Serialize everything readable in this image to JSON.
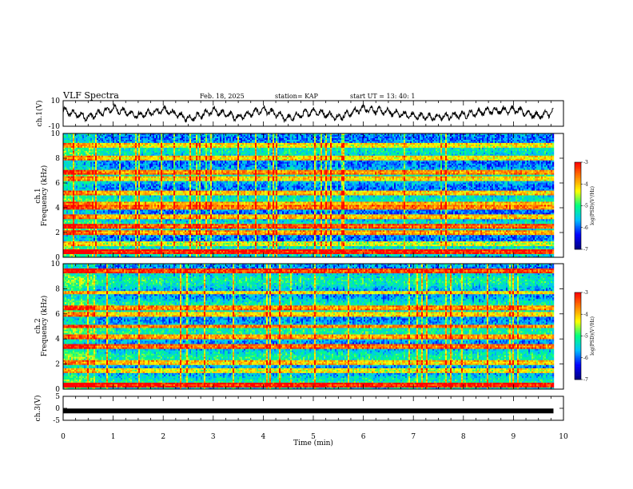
{
  "header": {
    "title": "VLF Spectra",
    "date": "Feb. 18, 2025",
    "station": "station= KAP",
    "start_ut": "start  UT =  13: 40: 1"
  },
  "chart_data": [
    {
      "type": "line",
      "panel": "ch1-waveform",
      "ylabel": "ch.1(V)",
      "ylim": [
        -10,
        10
      ],
      "yticks": [
        -10,
        10
      ],
      "xlim": [
        0,
        10
      ],
      "data_end_min": 9.8,
      "series": [
        {
          "description": "noisy oscillating voltage",
          "x": [
            0,
            0.5,
            1,
            1.5,
            2,
            2.5,
            3,
            3.5,
            4,
            4.5,
            5,
            5.5,
            6,
            6.5,
            7,
            7.5,
            8,
            8.5,
            9,
            9.5,
            9.8
          ],
          "values": [
            2,
            -3,
            4,
            -2,
            3,
            -4,
            2,
            -3,
            3,
            -4,
            2,
            -3,
            4,
            1,
            -2,
            -3,
            -1,
            2,
            3,
            -2,
            1
          ]
        }
      ]
    },
    {
      "type": "heatmap",
      "panel": "ch1-spectrogram",
      "ylabel_top": "ch.1",
      "ylabel": "Frequency (kHz)",
      "ylim": [
        0,
        10
      ],
      "yticks": [
        0,
        2,
        4,
        6,
        8,
        10
      ],
      "xlim": [
        0,
        10
      ],
      "data_end_min": 9.8,
      "colorbar": {
        "label": "log(PSD)(V²/Hz)",
        "range": [
          -7,
          -3
        ],
        "ticks": [
          -3,
          -4,
          -5,
          -6,
          -7
        ]
      },
      "regime_change_min": 0.6,
      "bands_khz": [
        {
          "f": 0.4,
          "level": -3.3
        },
        {
          "f": 1.1,
          "level": -4.6
        },
        {
          "f": 2.0,
          "level": -4.0
        },
        {
          "f": 2.5,
          "level": -3.6
        },
        {
          "f": 3.3,
          "level": -4.2
        },
        {
          "f": 4.0,
          "level": -3.8
        },
        {
          "f": 4.3,
          "level": -4.1
        },
        {
          "f": 5.2,
          "level": -4.2
        },
        {
          "f": 6.3,
          "level": -4.3
        },
        {
          "f": 6.9,
          "level": -3.9
        },
        {
          "f": 8.0,
          "level": -4.3
        },
        {
          "f": 9.0,
          "level": -4.4
        }
      ],
      "background_level": -5.6
    },
    {
      "type": "heatmap",
      "panel": "ch2-spectrogram",
      "ylabel_top": "ch.2",
      "ylabel": "Frequency (kHz)",
      "ylim": [
        0,
        10
      ],
      "yticks": [
        0,
        2,
        4,
        6,
        8,
        10
      ],
      "xlim": [
        0,
        10
      ],
      "data_end_min": 9.8,
      "colorbar": {
        "label": "log(PSD)(V²/Hz)",
        "range": [
          -7,
          -3
        ],
        "ticks": [
          -3,
          -4,
          -5,
          -6,
          -7
        ]
      },
      "regime_change_min": 0.6,
      "bands_khz": [
        {
          "f": 0.3,
          "level": -3.3
        },
        {
          "f": 1.5,
          "level": -4.5
        },
        {
          "f": 2.1,
          "level": -4.2
        },
        {
          "f": 3.4,
          "level": -3.7
        },
        {
          "f": 4.2,
          "level": -4.0
        },
        {
          "f": 5.0,
          "level": -3.8
        },
        {
          "f": 6.0,
          "level": -4.3
        },
        {
          "f": 6.5,
          "level": -3.9
        },
        {
          "f": 7.7,
          "level": -4.3
        },
        {
          "f": 9.4,
          "level": -3.5
        }
      ],
      "background_level": -5.5
    },
    {
      "type": "line",
      "panel": "ch3-waveform",
      "ylabel": "ch.3(V)",
      "ylim": [
        -5,
        5
      ],
      "yticks": [
        -5,
        0,
        5
      ],
      "xlim": [
        0,
        10
      ],
      "data_end_min": 9.8,
      "series": [
        {
          "description": "flat thick signal near -1 V",
          "x": [
            0,
            9.8
          ],
          "values": [
            -1.1,
            -1.1
          ]
        }
      ]
    }
  ],
  "x_axis": {
    "label": "Time (min)",
    "ticks": [
      "0",
      "1",
      "2",
      "3",
      "4",
      "5",
      "6",
      "7",
      "8",
      "9",
      "10"
    ]
  },
  "colors": {
    "line": "#000000",
    "colormap": [
      "#000080",
      "#0000ff",
      "#00c0ff",
      "#00ff80",
      "#ffff00",
      "#ff8000",
      "#ff0000",
      "#ffffff"
    ]
  }
}
